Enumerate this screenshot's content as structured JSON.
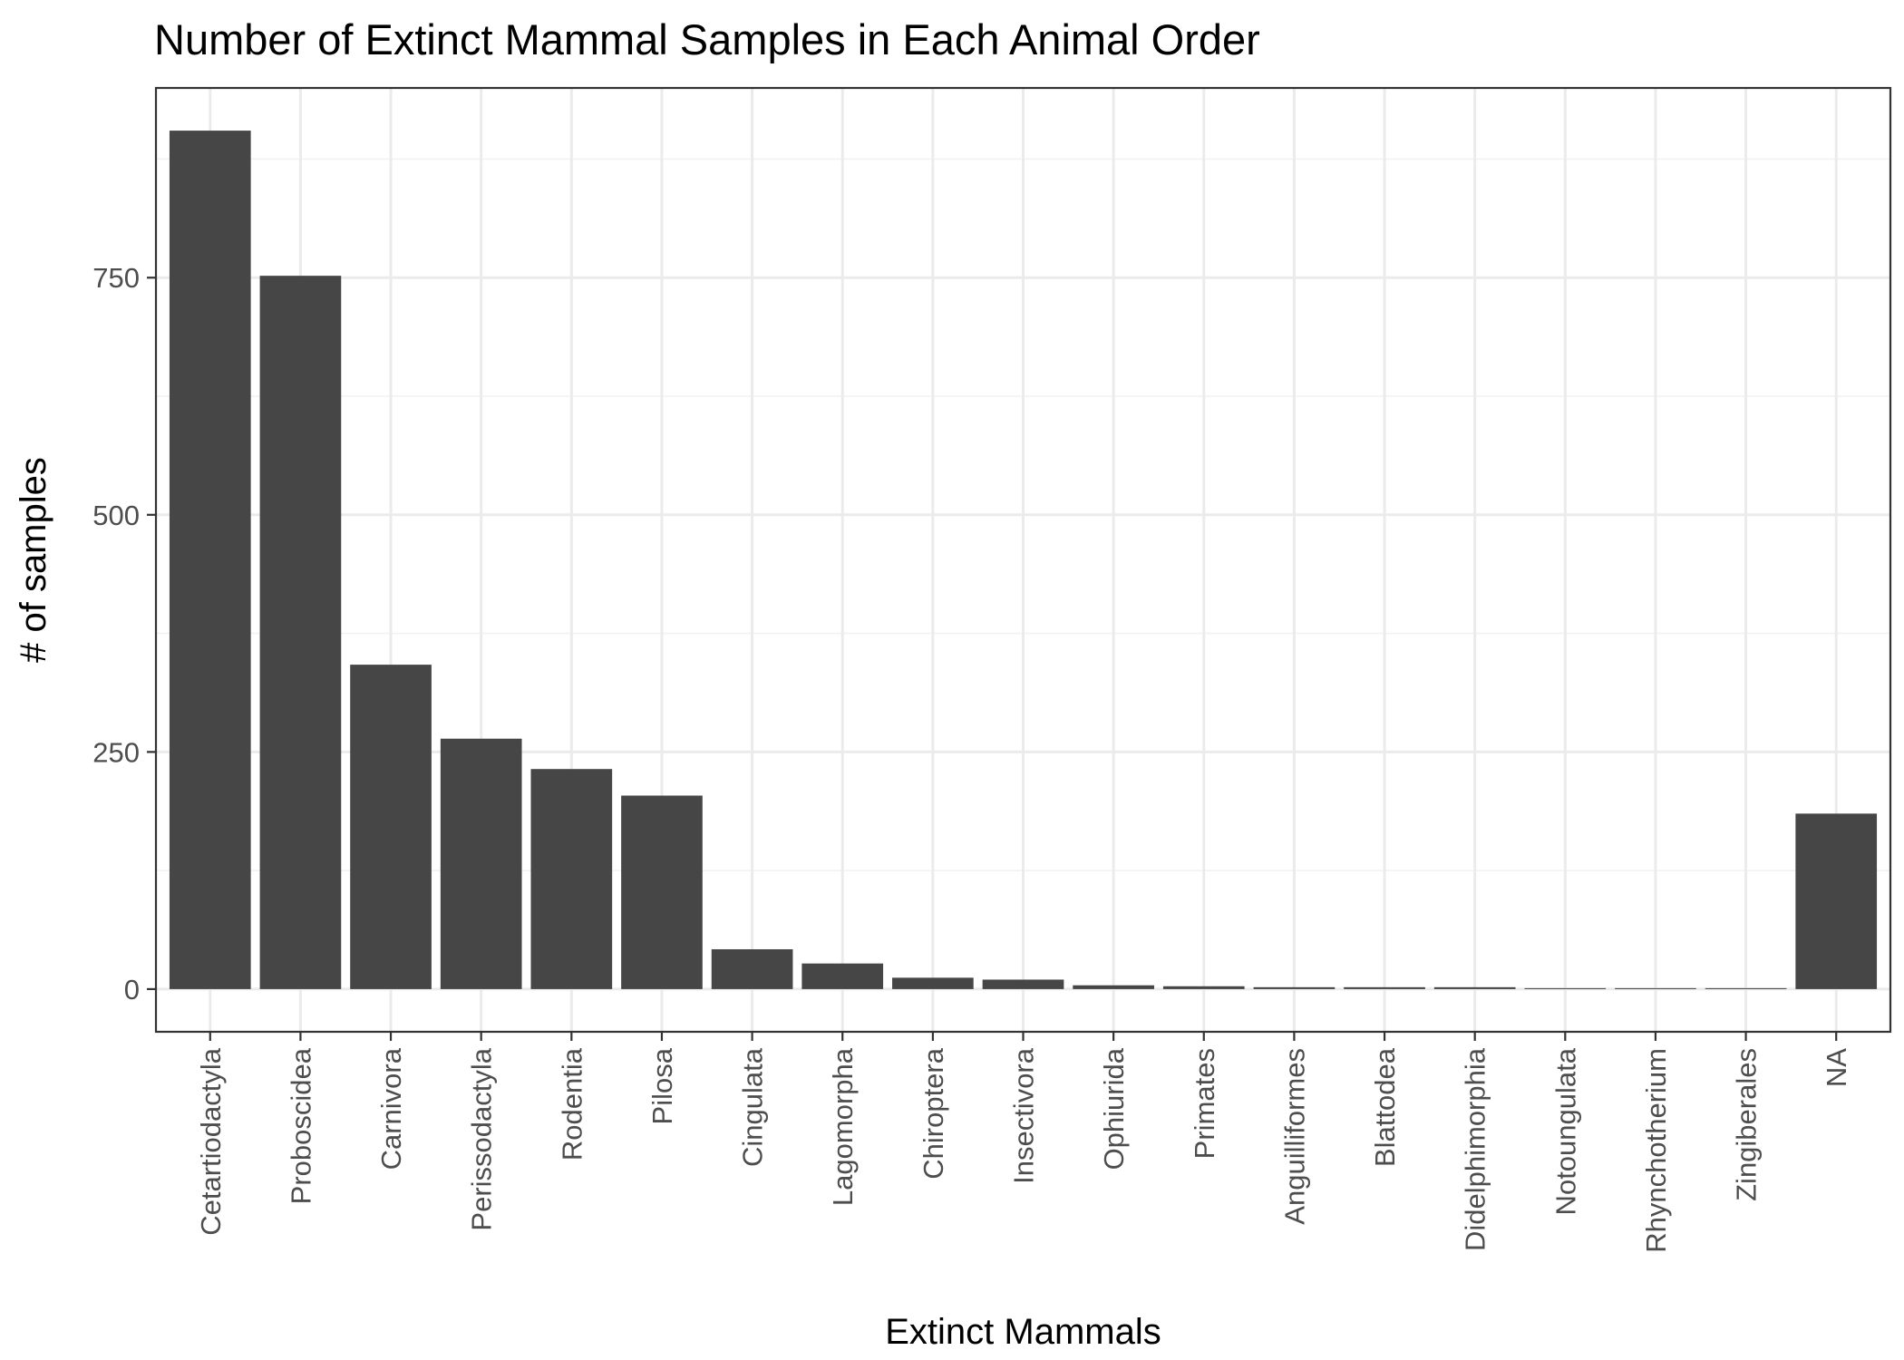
{
  "chart_data": {
    "type": "bar",
    "title": "Number of Extinct Mammal Samples in Each Animal Order",
    "xlabel": "Extinct Mammals",
    "ylabel": "# of samples",
    "categories": [
      "Cetartiodactyla",
      "Proboscidea",
      "Carnivora",
      "Perissodactyla",
      "Rodentia",
      "Pilosa",
      "Cingulata",
      "Lagomorpha",
      "Chiroptera",
      "Insectivora",
      "Ophiurida",
      "Primates",
      "Anguilliformes",
      "Blattodea",
      "Didelphimorphia",
      "Notoungulata",
      "Rhynchotherium",
      "Zingiberales",
      "NA"
    ],
    "values": [
      905,
      752,
      342,
      264,
      232,
      204,
      42,
      27,
      12,
      10,
      4,
      3,
      2,
      2,
      2,
      1,
      1,
      1,
      185
    ],
    "ylim": [
      -45,
      950
    ],
    "yticks": [
      0,
      250,
      500,
      750
    ],
    "yticks_minor": [
      125,
      375,
      625,
      875
    ],
    "bar_color": "#464646",
    "grid": true,
    "theme": "bw"
  }
}
